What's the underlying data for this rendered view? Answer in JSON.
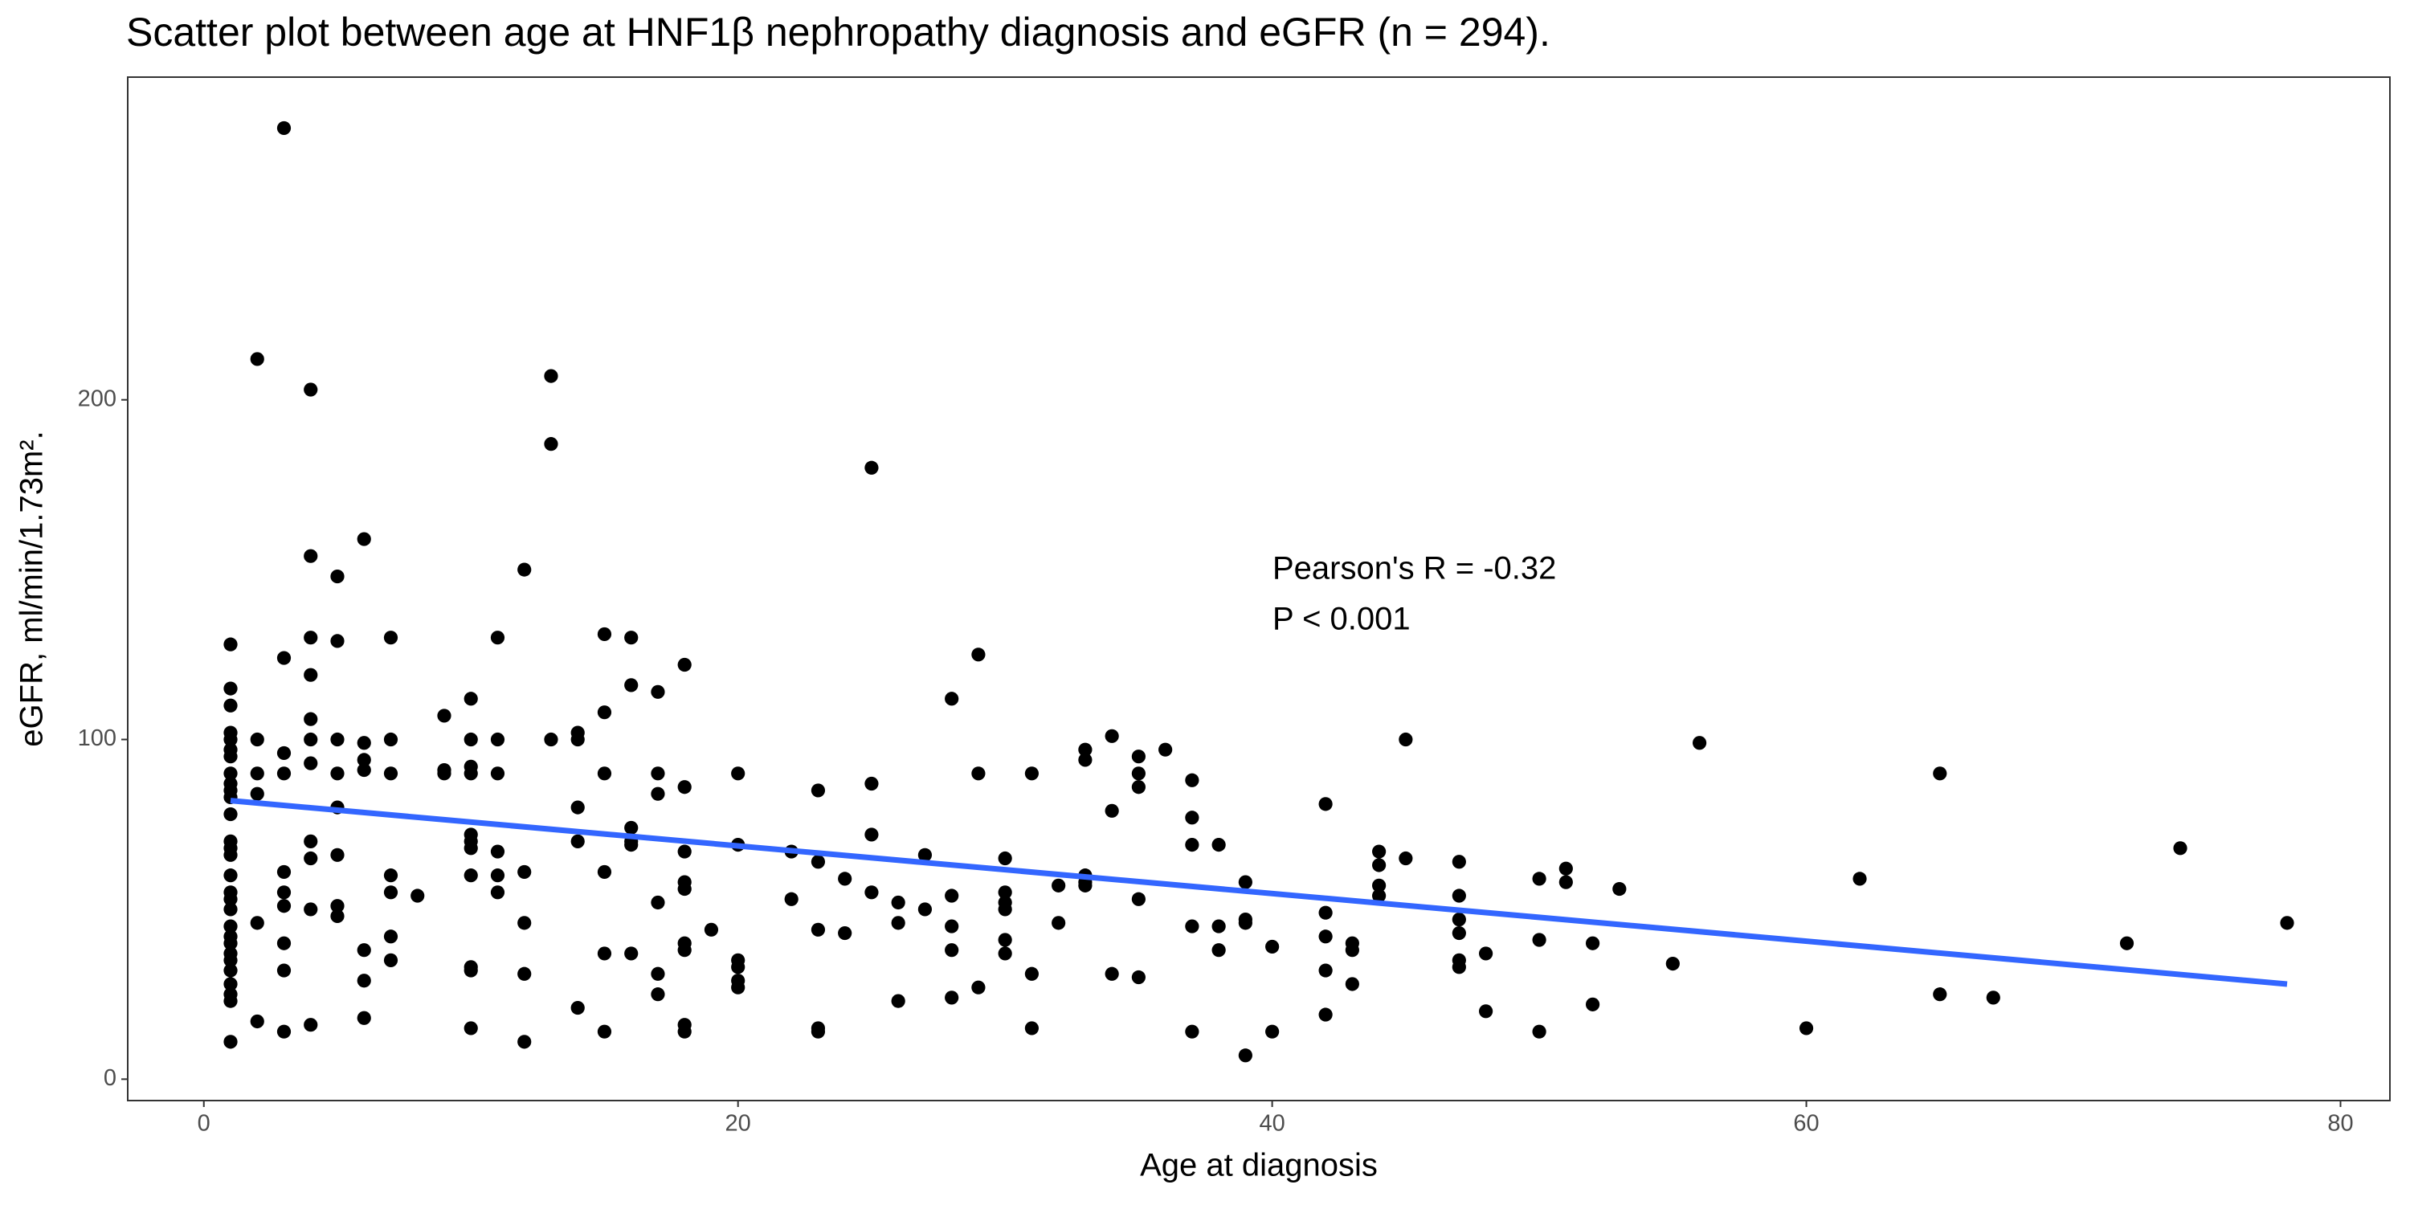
{
  "chart_data": {
    "type": "scatter",
    "title": "Scatter plot between age at HNF1β nephropathy diagnosis and eGFR (n = 294).",
    "x_label": "Age at diagnosis",
    "y_label": "eGFR, ml/min/1.73m².",
    "annotations": [
      "Pearson's R = -0.32",
      "P < 0.001"
    ],
    "xlim": [
      -2.85,
      81.85
    ],
    "ylim": [
      -6.3,
      295
    ],
    "xticks": [
      0,
      20,
      40,
      60,
      80
    ],
    "yticks": [
      0,
      100,
      200
    ],
    "grid": false,
    "series": [
      {
        "color": "#000000",
        "x": [
          1,
          1,
          1,
          1,
          1,
          1,
          1,
          1,
          1,
          1,
          1,
          1,
          1,
          1,
          1,
          1,
          1,
          1,
          1,
          1,
          1,
          1,
          1,
          1,
          1,
          1,
          1,
          1,
          1,
          2,
          2,
          2,
          2,
          2,
          2,
          3,
          3,
          3,
          3,
          3,
          3,
          3,
          3,
          3,
          3,
          4,
          4,
          4,
          4,
          4,
          4,
          4,
          4,
          4,
          4,
          4,
          5,
          5,
          5,
          5,
          5,
          5,
          5,
          5,
          6,
          6,
          6,
          6,
          6,
          6,
          6,
          7,
          7,
          7,
          7,
          7,
          7,
          7,
          8,
          9,
          9,
          9,
          10,
          10,
          10,
          10,
          10,
          10,
          10,
          10,
          10,
          10,
          10,
          11,
          11,
          11,
          11,
          11,
          11,
          12,
          12,
          12,
          12,
          12,
          13,
          13,
          13,
          14,
          14,
          14,
          14,
          14,
          15,
          15,
          15,
          15,
          15,
          15,
          16,
          16,
          16,
          16,
          16,
          16,
          17,
          17,
          17,
          17,
          17,
          17,
          18,
          18,
          18,
          18,
          18,
          18,
          18,
          18,
          18,
          19,
          20,
          20,
          20,
          20,
          20,
          20,
          22,
          22,
          23,
          23,
          23,
          23,
          23,
          24,
          24,
          25,
          25,
          25,
          25,
          26,
          26,
          26,
          27,
          27,
          28,
          28,
          28,
          28,
          28,
          29,
          29,
          29,
          30,
          30,
          30,
          30,
          30,
          30,
          31,
          31,
          31,
          32,
          32,
          33,
          33,
          33,
          33,
          33,
          34,
          34,
          34,
          35,
          35,
          35,
          35,
          35,
          36,
          37,
          37,
          37,
          37,
          37,
          38,
          38,
          38,
          39,
          39,
          39,
          39,
          40,
          40,
          42,
          42,
          42,
          42,
          42,
          43,
          43,
          43,
          44,
          44,
          44,
          44,
          45,
          45,
          47,
          47,
          47,
          47,
          47,
          47,
          48,
          48,
          50,
          50,
          50,
          51,
          51,
          52,
          52,
          53,
          55,
          56,
          60,
          62,
          65,
          65,
          67,
          72,
          74,
          78
        ],
        "y": [
          128,
          115,
          110,
          102,
          100,
          97,
          95,
          90,
          87,
          85,
          83,
          78,
          70,
          68,
          66,
          60,
          55,
          53,
          50,
          45,
          42,
          40,
          37,
          35,
          32,
          28,
          25,
          23,
          11,
          212,
          100,
          90,
          84,
          46,
          17,
          280,
          124,
          96,
          90,
          61,
          55,
          51,
          40,
          32,
          14,
          203,
          154,
          130,
          119,
          106,
          100,
          93,
          70,
          65,
          50,
          16,
          148,
          129,
          100,
          90,
          80,
          66,
          51,
          48,
          159,
          99,
          94,
          91,
          38,
          29,
          18,
          130,
          100,
          90,
          60,
          55,
          42,
          35,
          54,
          107,
          91,
          90,
          112,
          100,
          92,
          90,
          72,
          70,
          68,
          60,
          33,
          32,
          15,
          130,
          100,
          90,
          67,
          60,
          55,
          150,
          61,
          46,
          31,
          11,
          207,
          187,
          100,
          102,
          100,
          80,
          70,
          21,
          131,
          108,
          90,
          61,
          37,
          14,
          130,
          116,
          74,
          70,
          69,
          37,
          114,
          90,
          84,
          52,
          31,
          25,
          122,
          86,
          67,
          58,
          56,
          40,
          38,
          16,
          14,
          44,
          90,
          69,
          35,
          33,
          29,
          27,
          67,
          53,
          85,
          64,
          44,
          15,
          14,
          59,
          43,
          180,
          87,
          72,
          55,
          52,
          46,
          23,
          66,
          50,
          112,
          54,
          45,
          38,
          24,
          125,
          90,
          27,
          65,
          55,
          52,
          50,
          41,
          37,
          90,
          31,
          15,
          57,
          46,
          97,
          94,
          60,
          58,
          57,
          101,
          79,
          31,
          95,
          90,
          86,
          53,
          30,
          97,
          88,
          77,
          69,
          45,
          14,
          69,
          45,
          38,
          58,
          47,
          46,
          7,
          39,
          14,
          81,
          49,
          42,
          32,
          19,
          40,
          38,
          28,
          67,
          63,
          57,
          54,
          100,
          65,
          64,
          54,
          47,
          43,
          35,
          33,
          37,
          20,
          59,
          41,
          14,
          62,
          58,
          40,
          22,
          56,
          34,
          99,
          15,
          59,
          90,
          25,
          24,
          40,
          68,
          46
        ]
      }
    ],
    "fit": {
      "color": "#3366ff",
      "x": [
        1,
        78
      ],
      "y": [
        82,
        28
      ]
    }
  }
}
